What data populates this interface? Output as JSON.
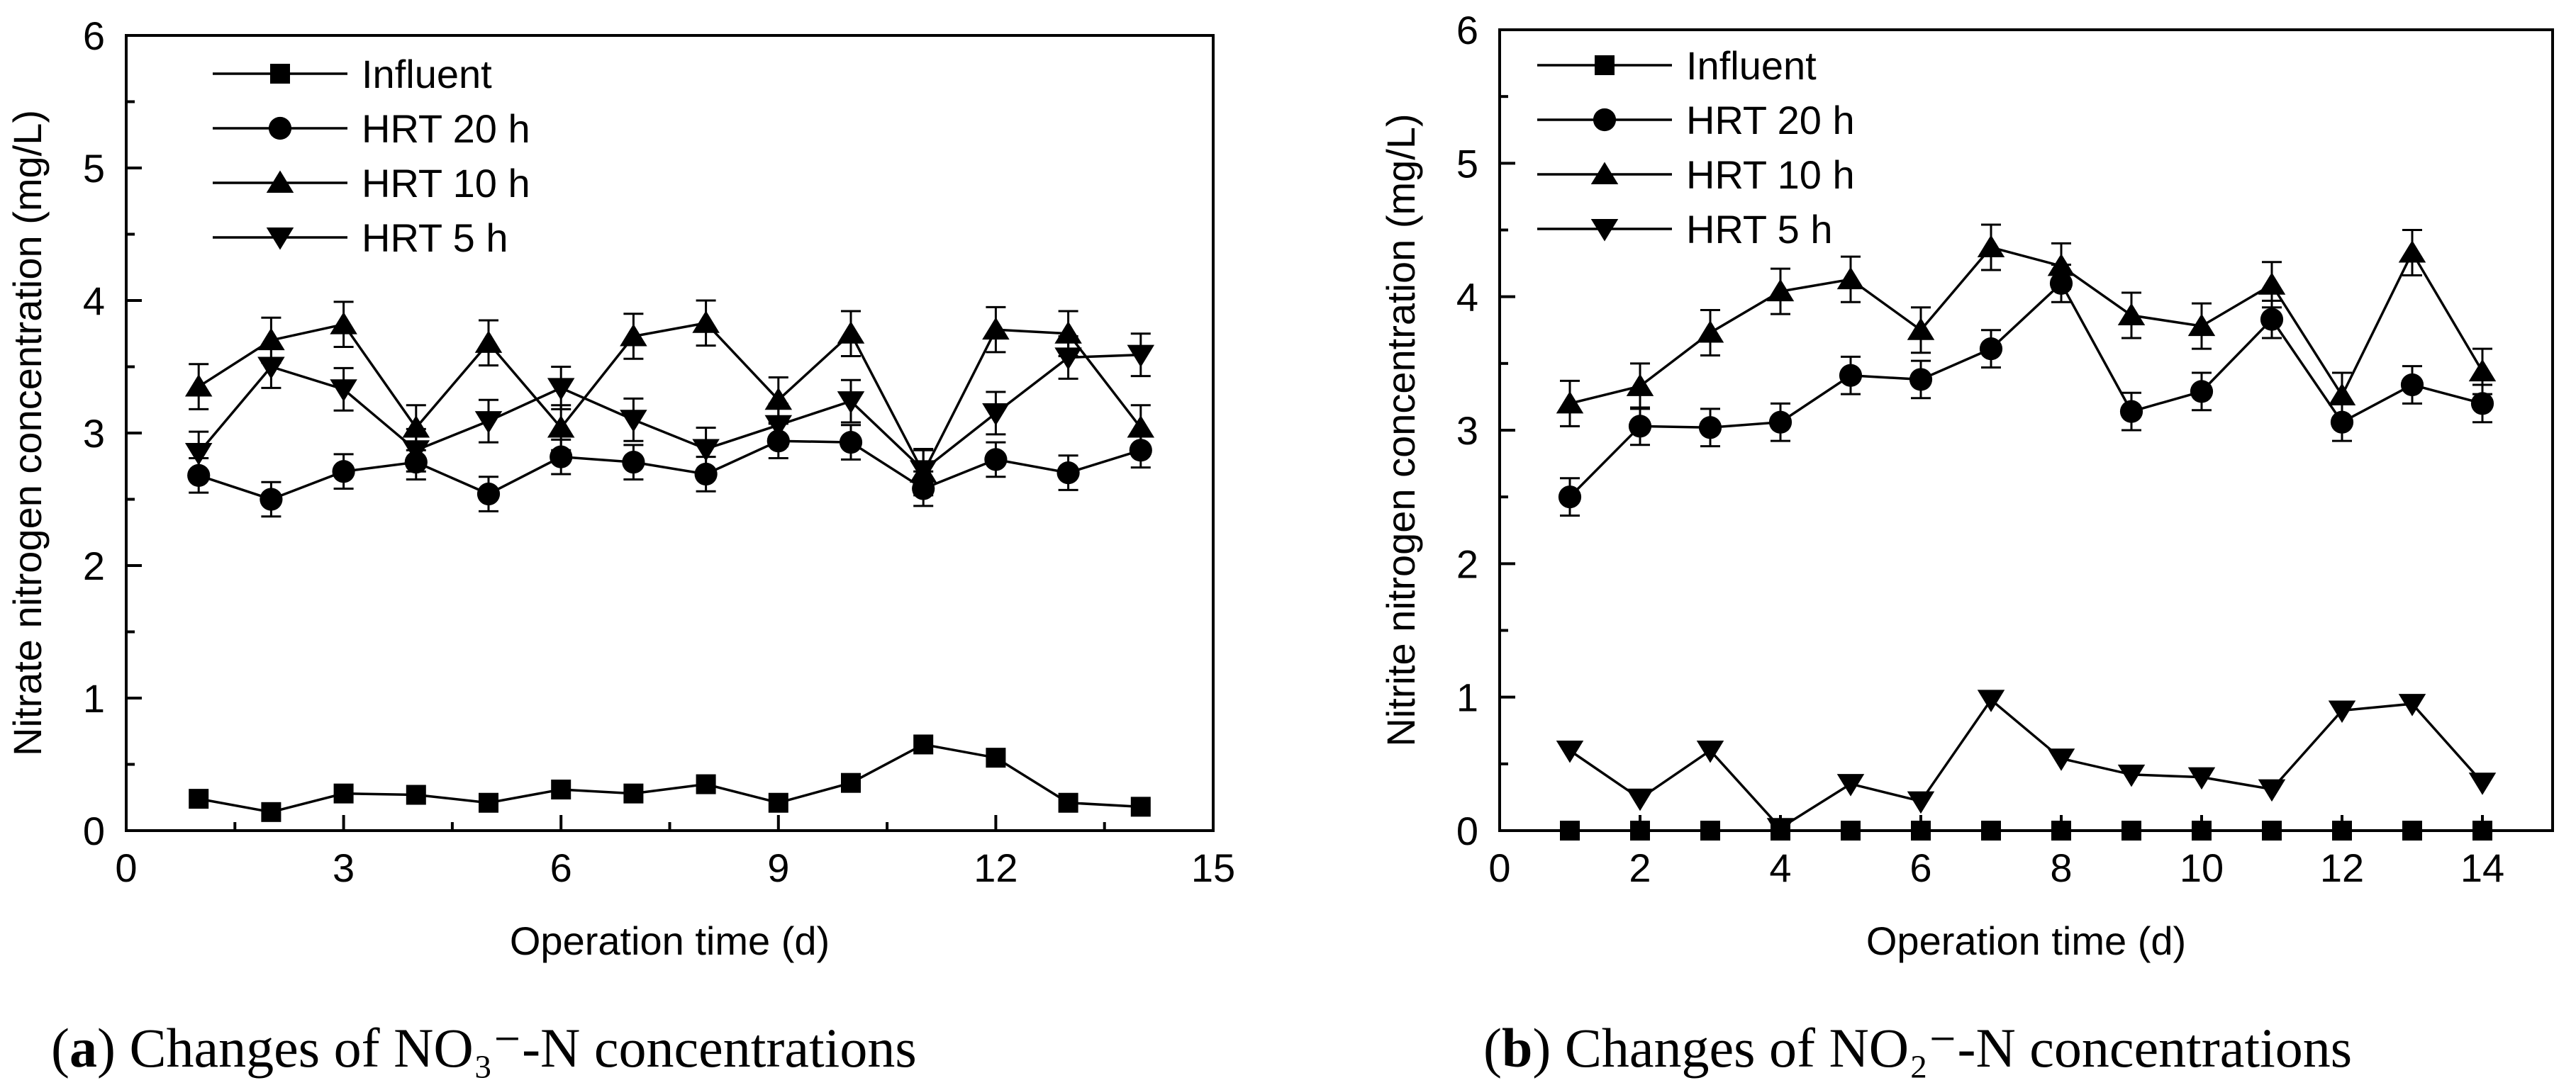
{
  "chart_data": [
    {
      "type": "line",
      "panel_id": "a",
      "caption_letter": "a",
      "caption_open": "(",
      "caption_close": ")",
      "caption_text": " Changes of NO₃⁻-N concentrations",
      "xlabel": "Operation time (d)",
      "ylabel": "Nitrate nitrogen concentration (mg/L)",
      "xlim": [
        0,
        15
      ],
      "ylim": [
        0,
        6
      ],
      "xticks": [
        0,
        3,
        6,
        9,
        12,
        15
      ],
      "xtick_labels": [
        "0",
        "3",
        "6",
        "9",
        "12",
        "15"
      ],
      "xminor": [
        1.5,
        4.5,
        7.5,
        10.5,
        13.5
      ],
      "yticks": [
        0,
        1,
        2,
        3,
        4,
        5,
        6
      ],
      "ytick_labels": [
        "0",
        "1",
        "2",
        "3",
        "4",
        "5",
        "6"
      ],
      "yminor": [
        0.5,
        1.5,
        2.5,
        3.5,
        4.5,
        5.5
      ],
      "legend_position": "top-left",
      "x": [
        1,
        2,
        3,
        4,
        5,
        6,
        7,
        8,
        9,
        10,
        11,
        12,
        13,
        14
      ],
      "series": [
        {
          "name": "Influent",
          "marker": "square",
          "values": [
            0.24,
            0.14,
            0.28,
            0.27,
            0.21,
            0.31,
            0.28,
            0.35,
            0.21,
            0.36,
            0.65,
            0.55,
            0.21,
            0.18
          ]
        },
        {
          "name": "HRT 20 h",
          "marker": "circle",
          "error": 0.13,
          "values": [
            2.68,
            2.5,
            2.71,
            2.78,
            2.54,
            2.82,
            2.78,
            2.69,
            2.94,
            2.93,
            2.58,
            2.8,
            2.7,
            2.87
          ]
        },
        {
          "name": "HRT 10 h",
          "marker": "triangle-up",
          "error": 0.17,
          "values": [
            3.35,
            3.7,
            3.82,
            3.04,
            3.68,
            3.04,
            3.73,
            3.83,
            3.25,
            3.75,
            2.7,
            3.78,
            3.75,
            3.04
          ]
        },
        {
          "name": "HRT 5 h",
          "marker": "triangle-down",
          "error": 0.16,
          "values": [
            2.85,
            3.5,
            3.33,
            2.87,
            3.09,
            3.34,
            3.1,
            2.88,
            3.06,
            3.24,
            2.72,
            3.15,
            3.57,
            3.59
          ]
        }
      ]
    },
    {
      "type": "line",
      "panel_id": "b",
      "caption_letter": "b",
      "caption_open": "(",
      "caption_close": ")",
      "caption_text": " Changes of NO₂⁻-N concentrations",
      "xlabel": "Operation time (d)",
      "ylabel": "Nitrite nitrogen concentration (mg/L)",
      "xlim": [
        0,
        15
      ],
      "ylim": [
        0,
        6
      ],
      "xticks": [
        0,
        2,
        4,
        6,
        8,
        10,
        12,
        14
      ],
      "xtick_labels": [
        "0",
        "2",
        "4",
        "6",
        "8",
        "10",
        "12",
        "14"
      ],
      "xminor": [
        1,
        3,
        5,
        7,
        9,
        11,
        13
      ],
      "yticks": [
        0,
        1,
        2,
        3,
        4,
        5,
        6
      ],
      "ytick_labels": [
        "0",
        "1",
        "2",
        "3",
        "4",
        "5",
        "6"
      ],
      "yminor": [
        0.5,
        1.5,
        2.5,
        3.5,
        4.5,
        5.5
      ],
      "legend_position": "top-left",
      "x": [
        1,
        2,
        3,
        4,
        5,
        6,
        7,
        8,
        9,
        10,
        11,
        12,
        13,
        14
      ],
      "series": [
        {
          "name": "Influent",
          "marker": "square",
          "values": [
            0,
            0,
            0,
            0,
            0,
            0,
            0,
            0,
            0,
            0,
            0,
            0,
            0,
            0
          ]
        },
        {
          "name": "HRT 20 h",
          "marker": "circle",
          "error": 0.14,
          "values": [
            2.5,
            3.03,
            3.02,
            3.06,
            3.41,
            3.38,
            3.61,
            4.1,
            3.14,
            3.29,
            3.83,
            3.06,
            3.34,
            3.2
          ]
        },
        {
          "name": "HRT 10 h",
          "marker": "triangle-up",
          "error": 0.17,
          "values": [
            3.2,
            3.33,
            3.73,
            4.04,
            4.13,
            3.75,
            4.37,
            4.23,
            3.86,
            3.78,
            4.09,
            3.26,
            4.33,
            3.44
          ]
        },
        {
          "name": "HRT 5 h",
          "marker": "triangle-down",
          "values": [
            0.6,
            0.24,
            0.6,
            0.02,
            0.35,
            0.22,
            0.98,
            0.54,
            0.42,
            0.4,
            0.31,
            0.9,
            0.95,
            0.36
          ]
        }
      ]
    }
  ]
}
